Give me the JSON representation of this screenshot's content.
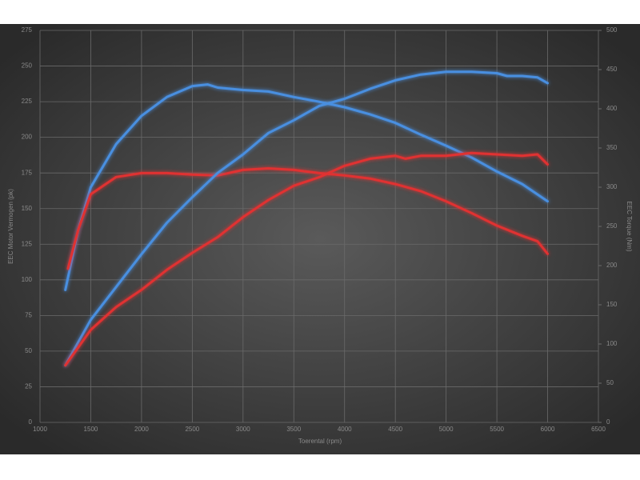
{
  "chart_data": {
    "type": "line",
    "xlabel": "Toerental (rpm)",
    "ylabel": "EEC Motor Vermogen (pk)",
    "y2label": "EEC Torque (Nm)",
    "xlim": [
      1000,
      6500
    ],
    "xticks": [
      1000,
      1500,
      2000,
      2500,
      3000,
      3500,
      4000,
      4500,
      5000,
      5500,
      6000,
      6500
    ],
    "ylim": [
      0,
      275
    ],
    "yticks": [
      0,
      25,
      50,
      75,
      100,
      125,
      150,
      175,
      200,
      225,
      250,
      275
    ],
    "y2lim": [
      0,
      500
    ],
    "y2ticks": [
      0,
      50,
      100,
      150,
      200,
      250,
      300,
      350,
      400,
      450,
      500
    ],
    "grid": true,
    "series": [
      {
        "color": "#4a8fe0",
        "axis": "y2",
        "x": [
          1250,
          1375,
          1500,
          1750,
          2000,
          2250,
          2500,
          2650,
          2750,
          3000,
          3250,
          3500,
          3750,
          4000,
          4250,
          4500,
          4750,
          5000,
          5250,
          5500,
          5750,
          6000
        ],
        "values": [
          169,
          245,
          300,
          355,
          391,
          415,
          429,
          431,
          427,
          424,
          422,
          415,
          409,
          402,
          393,
          382,
          367,
          353,
          338,
          320,
          304,
          282
        ]
      },
      {
        "color": "#e03030",
        "axis": "y2",
        "x": [
          1275,
          1375,
          1500,
          1750,
          2000,
          2250,
          2500,
          2750,
          3000,
          3250,
          3500,
          3750,
          4000,
          4250,
          4500,
          4750,
          5000,
          5250,
          5500,
          5750,
          5900,
          6000
        ],
        "values": [
          196,
          245,
          291,
          313,
          318,
          318,
          316,
          315,
          322,
          324,
          322,
          318,
          315,
          311,
          304,
          295,
          282,
          267,
          251,
          238,
          231,
          215
        ]
      },
      {
        "color": "#4a8fe0",
        "axis": "y",
        "x": [
          1250,
          1500,
          1750,
          2000,
          2250,
          2500,
          2750,
          3000,
          3250,
          3500,
          3750,
          4000,
          4250,
          4500,
          4750,
          5000,
          5250,
          5500,
          5600,
          5750,
          5900,
          6000
        ],
        "values": [
          40,
          72,
          95,
          118,
          140,
          158,
          175,
          188,
          203,
          212,
          222,
          227,
          234,
          240,
          244,
          246,
          246,
          245,
          243,
          243,
          242,
          238
        ]
      },
      {
        "color": "#e03030",
        "axis": "y",
        "x": [
          1250,
          1500,
          1750,
          2000,
          2250,
          2500,
          2750,
          3000,
          3250,
          3500,
          3750,
          4000,
          4250,
          4500,
          4600,
          4750,
          5000,
          5250,
          5500,
          5750,
          5900,
          6000
        ],
        "values": [
          40,
          65,
          81,
          93,
          107,
          119,
          130,
          144,
          156,
          166,
          172,
          180,
          185,
          187,
          185,
          187,
          187,
          189,
          188,
          187,
          188,
          181
        ]
      }
    ]
  }
}
